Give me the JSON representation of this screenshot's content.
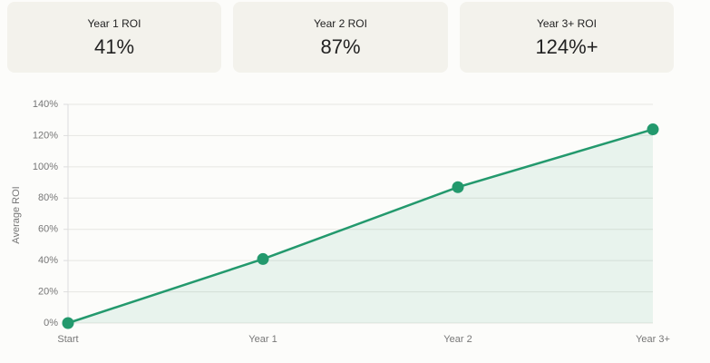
{
  "cards": [
    {
      "label": "Year 1 ROI",
      "value": "41%"
    },
    {
      "label": "Year 2 ROI",
      "value": "87%"
    },
    {
      "label": "Year 3+ ROI",
      "value": "124%+"
    }
  ],
  "chart_data": {
    "type": "line",
    "ylabel": "Average ROI",
    "categories": [
      "Start",
      "Year 1",
      "Year 2",
      "Year 3+"
    ],
    "values": [
      0,
      41,
      87,
      124
    ],
    "color": "#23996d",
    "area": true,
    "ylim": [
      0,
      140
    ],
    "yticks": [
      {
        "value": 0,
        "label": "0%"
      },
      {
        "value": 20,
        "label": "20%"
      },
      {
        "value": 40,
        "label": "40%"
      },
      {
        "value": 60,
        "label": "60%"
      },
      {
        "value": 80,
        "label": "80%"
      },
      {
        "value": 100,
        "label": "100%"
      },
      {
        "value": 120,
        "label": "120%"
      },
      {
        "value": 140,
        "label": "140%"
      }
    ],
    "grid": true
  }
}
